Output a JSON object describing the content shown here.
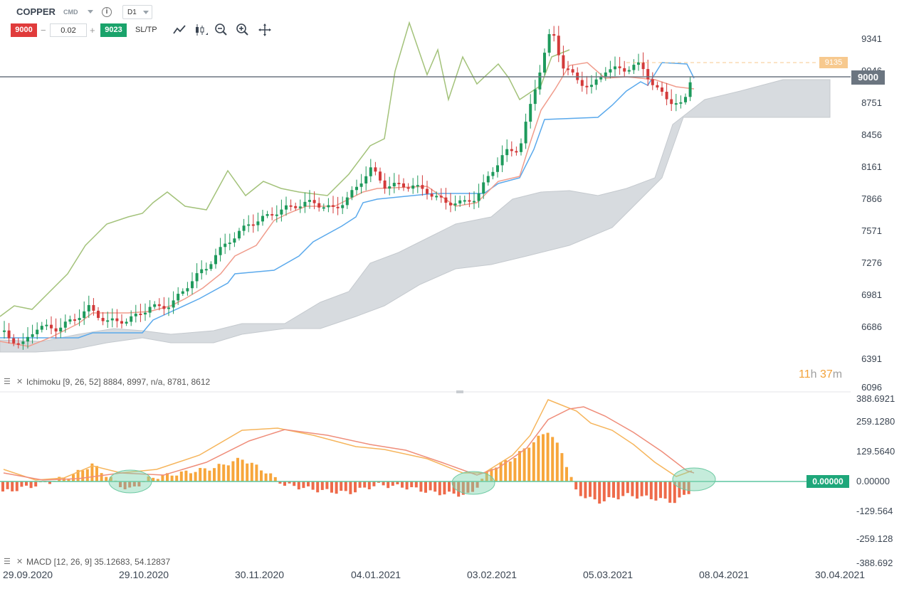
{
  "toolbar": {
    "symbol": "COPPER",
    "symbol_type": "CMD",
    "timeframe": "D1",
    "sell_price": "9000",
    "quantity": "0.02",
    "buy_price": "9023",
    "sltp_label": "SL/TP",
    "minus": "−",
    "plus": "+",
    "info": "i"
  },
  "tools": [
    "line-chart-icon",
    "candlestick-icon",
    "zoom-out-icon",
    "zoom-in-icon",
    "crosshair-icon"
  ],
  "price_axis": {
    "labels": [
      "9341",
      "9046",
      "8751",
      "8456",
      "8161",
      "7866",
      "7571",
      "7276",
      "6981",
      "6686",
      "6391",
      "6096"
    ],
    "current_price": "9000",
    "target_level": "9135"
  },
  "macd_axis": {
    "labels": [
      "388.6921",
      "259.1280",
      "129.5640",
      "0.00000",
      "-129.564",
      "-259.128",
      "-388.692"
    ],
    "zero_tag": "0.00000"
  },
  "timer": {
    "hours": "11",
    "h_unit": "h",
    "minutes": "37",
    "m_unit": "m"
  },
  "indicators": {
    "ichimoku": "Ichimoku [9, 26, 52] 8884, 8997, n/a, 8781, 8612",
    "macd": "MACD [12, 26, 9] 35.12683, 54.12837"
  },
  "x_axis": [
    "29.09.2020",
    "29.10.2020",
    "30.11.2020",
    "04.01.2021",
    "03.02.2021",
    "05.03.2021",
    "08.04.2021",
    "30.04.2021"
  ],
  "colors": {
    "up": "#1e9a5c",
    "down": "#d33a3a",
    "tenkan": "#f09c8c",
    "kijun": "#5aa9ec",
    "chikou": "#a3c27a",
    "cloud": "#d7dbdf",
    "macd_line": "#f6b55c",
    "signal_line": "#ef8d7a",
    "hist_up": "#f7a63c",
    "hist_down": "#ee6a4a"
  }
}
